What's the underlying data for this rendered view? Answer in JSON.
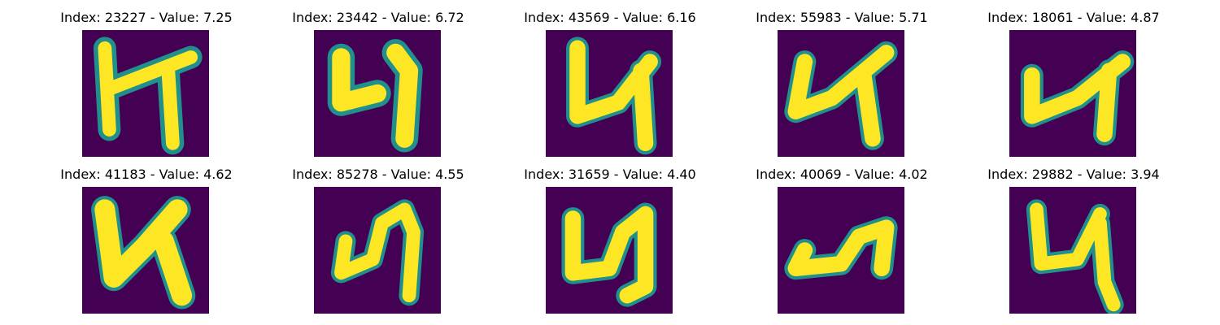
{
  "colors": {
    "background": "#440154",
    "mid": "#21908d",
    "bright": "#fde725"
  },
  "panels": [
    {
      "title": "Index: 23227 - Value: 7.25"
    },
    {
      "title": "Index: 23442 - Value: 6.72"
    },
    {
      "title": "Index: 43569 - Value: 6.16"
    },
    {
      "title": "Index: 55983 - Value: 5.71"
    },
    {
      "title": "Index: 18061 - Value: 4.87"
    },
    {
      "title": "Index: 41183 - Value: 4.62"
    },
    {
      "title": "Index: 85278 - Value: 4.55"
    },
    {
      "title": "Index: 31659 - Value: 4.40"
    },
    {
      "title": "Index: 40069 - Value: 4.02"
    },
    {
      "title": "Index: 29882 - Value: 3.94"
    }
  ]
}
